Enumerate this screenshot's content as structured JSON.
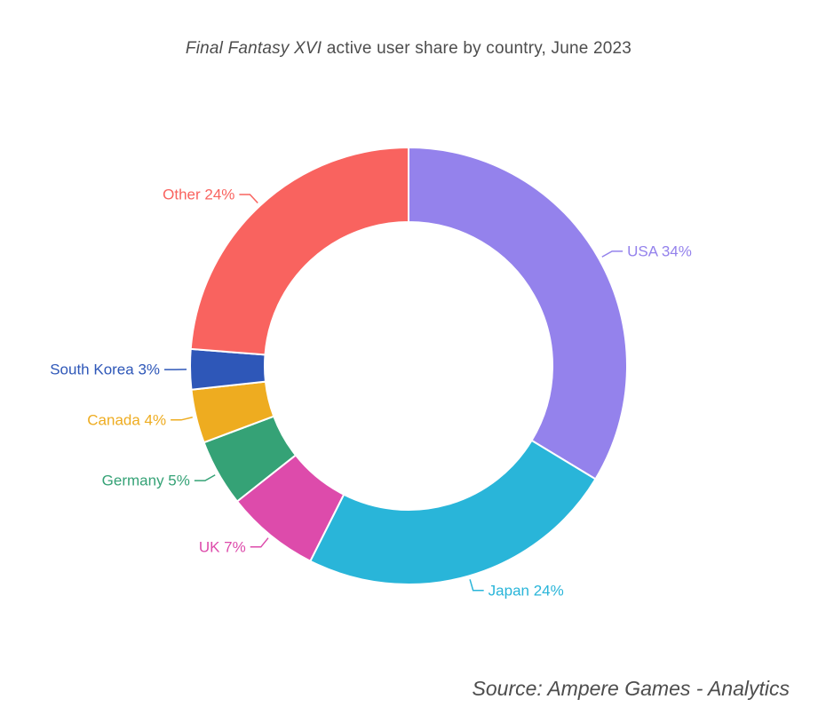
{
  "page": {
    "background_color": "#ffffff",
    "text_color": "#4d4d4d"
  },
  "header": {
    "title_italic": "Final Fantasy XVI",
    "title_rest": " active user share by country, June 2023"
  },
  "footer": {
    "source": "Source: Ampere Games - Analytics"
  },
  "chart_data": {
    "type": "pie",
    "subtype": "donut",
    "title": "Final Fantasy XVI active user share by country, June 2023",
    "source": "Source: Ampere Games - Analytics",
    "hole_ratio": 0.66,
    "start_angle_deg": 0,
    "direction": "clockwise",
    "legend_position": "none",
    "label_style": "outside leader lines, colored to match slice",
    "categories": [
      "USA",
      "Japan",
      "UK",
      "Germany",
      "Canada",
      "South Korea",
      "Other"
    ],
    "values": [
      34,
      24,
      7,
      5,
      4,
      3,
      24
    ],
    "slices": [
      {
        "label": "USA",
        "pct": 34,
        "display": "USA 34%",
        "color": "#9482ec"
      },
      {
        "label": "Japan",
        "pct": 24,
        "display": "Japan 24%",
        "color": "#29b5d9"
      },
      {
        "label": "UK",
        "pct": 7,
        "display": "UK 7%",
        "color": "#dd4bab"
      },
      {
        "label": "Germany",
        "pct": 5,
        "display": "Germany 5%",
        "color": "#35a276"
      },
      {
        "label": "Canada",
        "pct": 4,
        "display": "Canada 4%",
        "color": "#eeac20"
      },
      {
        "label": "South Korea",
        "pct": 3,
        "display": "South Korea 3%",
        "color": "#2e57b8"
      },
      {
        "label": "Other",
        "pct": 24,
        "display": "Other 24%",
        "color": "#f9635f"
      }
    ]
  }
}
